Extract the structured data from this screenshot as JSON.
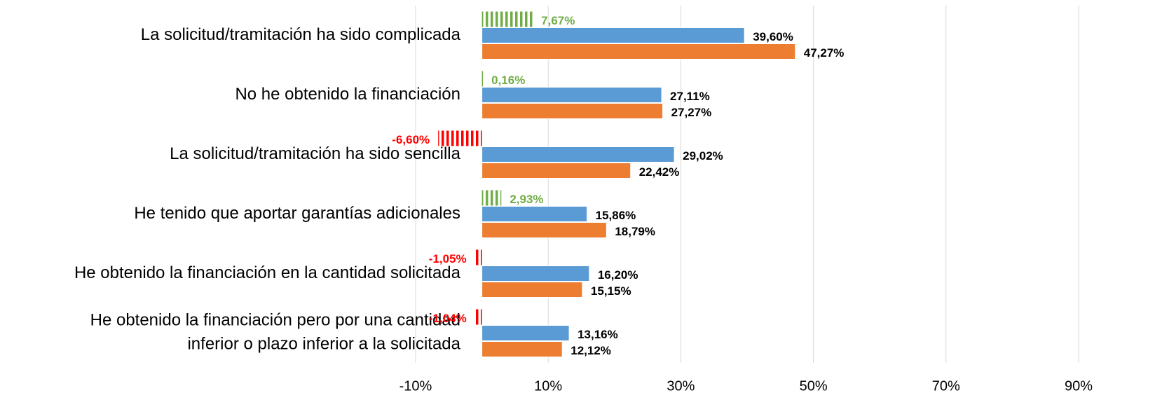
{
  "chart_data": {
    "type": "bar",
    "orientation": "horizontal",
    "categories": [
      "La solicitud/tramitación ha sido complicada",
      "No he obtenido la financiación",
      "La solicitud/tramitación ha sido sencilla",
      "He tenido que aportar garantías adicionales",
      "He obtenido la financiación en la cantidad solicitada",
      "He obtenido la financiación pero por una cantidad\ninferior o plazo inferior a la solicitada"
    ],
    "series": [
      {
        "color": "#70ad47",
        "negative_color": "#ff0000",
        "hatched": true,
        "values": [
          7.67,
          0.16,
          -6.6,
          2.93,
          -1.05,
          -1.04
        ],
        "value_labels": [
          "7,67%",
          "0,16%",
          "-6,60%",
          "2,93%",
          "-1,05%",
          "-1,04%"
        ]
      },
      {
        "color": "#5b9bd5",
        "values": [
          39.6,
          27.11,
          29.02,
          15.86,
          16.2,
          13.16
        ],
        "value_labels": [
          "39,60%",
          "27,11%",
          "29,02%",
          "15,86%",
          "16,20%",
          "13,16%"
        ]
      },
      {
        "color": "#ed7d31",
        "values": [
          47.27,
          27.27,
          22.42,
          18.79,
          15.15,
          12.12
        ],
        "value_labels": [
          "47,27%",
          "27,27%",
          "22,42%",
          "18,79%",
          "15,15%",
          "12,12%"
        ]
      }
    ],
    "xlim": [
      -10,
      90
    ],
    "xticks": [
      {
        "value": -10,
        "label": "-10%"
      },
      {
        "value": 10,
        "label": "10%"
      },
      {
        "value": 30,
        "label": "30%"
      },
      {
        "value": 50,
        "label": "50%"
      },
      {
        "value": 70,
        "label": "70%"
      },
      {
        "value": 90,
        "label": "90%"
      }
    ],
    "grid": true
  }
}
